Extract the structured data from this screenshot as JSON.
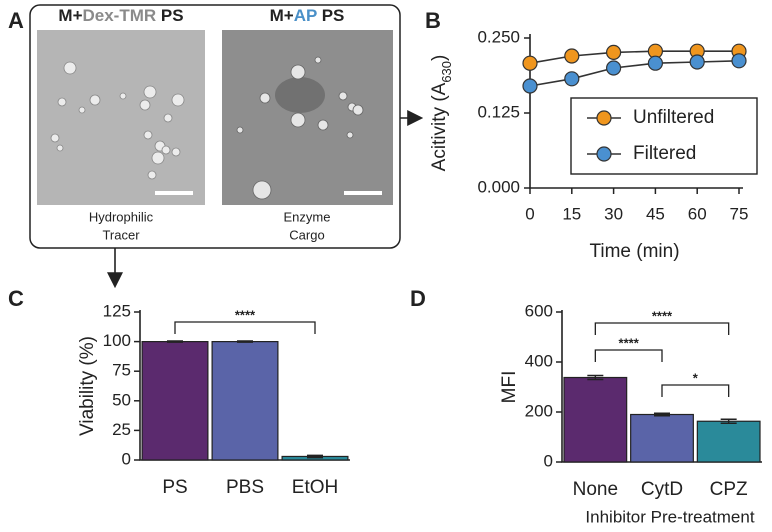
{
  "panel_labels": [
    "A",
    "B",
    "C",
    "D"
  ],
  "panel_a": {
    "images": [
      {
        "title": [
          {
            "text": "M+",
            "color": "#222222"
          },
          {
            "text": "Dex-TMR",
            "color": "#8a8a8a"
          },
          {
            "text": " PS",
            "color": "#222222"
          }
        ],
        "caption": [
          "Hydrophilic",
          "Tracer"
        ]
      },
      {
        "title": [
          {
            "text": "M+",
            "color": "#222222"
          },
          {
            "text": "AP",
            "color": "#4a90c8"
          },
          {
            "text": " PS",
            "color": "#222222"
          }
        ],
        "caption": [
          "Enzyme",
          "Cargo"
        ]
      }
    ]
  },
  "chart_data": [
    {
      "type": "line",
      "ylabel_parts": [
        "Acitivity (A",
        "630",
        ")"
      ],
      "xlabel": "Time (min)",
      "x": [
        0,
        15,
        30,
        45,
        60,
        75
      ],
      "series": [
        {
          "name": "Unfiltered",
          "color": "#f0961e",
          "values": [
            0.208,
            0.22,
            0.226,
            0.228,
            0.228,
            0.228
          ]
        },
        {
          "name": "Filtered",
          "color": "#4a90d0",
          "values": [
            0.17,
            0.182,
            0.2,
            0.208,
            0.21,
            0.212
          ]
        }
      ],
      "xlim": [
        0,
        75
      ],
      "xticks": [
        0,
        15,
        30,
        45,
        60,
        75
      ],
      "ylim": [
        0,
        0.25
      ],
      "yticks": [
        {
          "value": 0,
          "label": "0.000"
        },
        {
          "value": 0.125,
          "label": "0.125"
        },
        {
          "value": 0.25,
          "label": "0.250"
        }
      ],
      "legend": "right"
    },
    {
      "type": "bar",
      "ylabel": "Viability (%)",
      "categories": [
        "PS",
        "PBS",
        "EtOH"
      ],
      "values": [
        100,
        100,
        3
      ],
      "errors": [
        0.5,
        0.5,
        1
      ],
      "colors": [
        "#5b2a6e",
        "#5a64a8",
        "#2a8a9a"
      ],
      "ylim": [
        0,
        125
      ],
      "yticks": [
        0,
        25,
        50,
        75,
        100,
        125
      ],
      "annotations": [
        {
          "from": 0,
          "to": 2,
          "text": "****"
        }
      ]
    },
    {
      "type": "bar",
      "ylabel": "MFI",
      "xlabel": "Inhibitor Pre-treatment",
      "categories": [
        "None",
        "CytD",
        "CPZ"
      ],
      "values": [
        338,
        190,
        163
      ],
      "errors": [
        8,
        5,
        8
      ],
      "colors": [
        "#5b2a6e",
        "#5a64a8",
        "#2a8a9a"
      ],
      "ylim": [
        0,
        600
      ],
      "yticks": [
        0,
        200,
        400,
        600
      ],
      "annotations": [
        {
          "from": 0,
          "to": 2,
          "text": "****"
        },
        {
          "from": 0,
          "to": 1,
          "text": "****"
        },
        {
          "from": 1,
          "to": 2,
          "text": "*"
        }
      ]
    }
  ]
}
